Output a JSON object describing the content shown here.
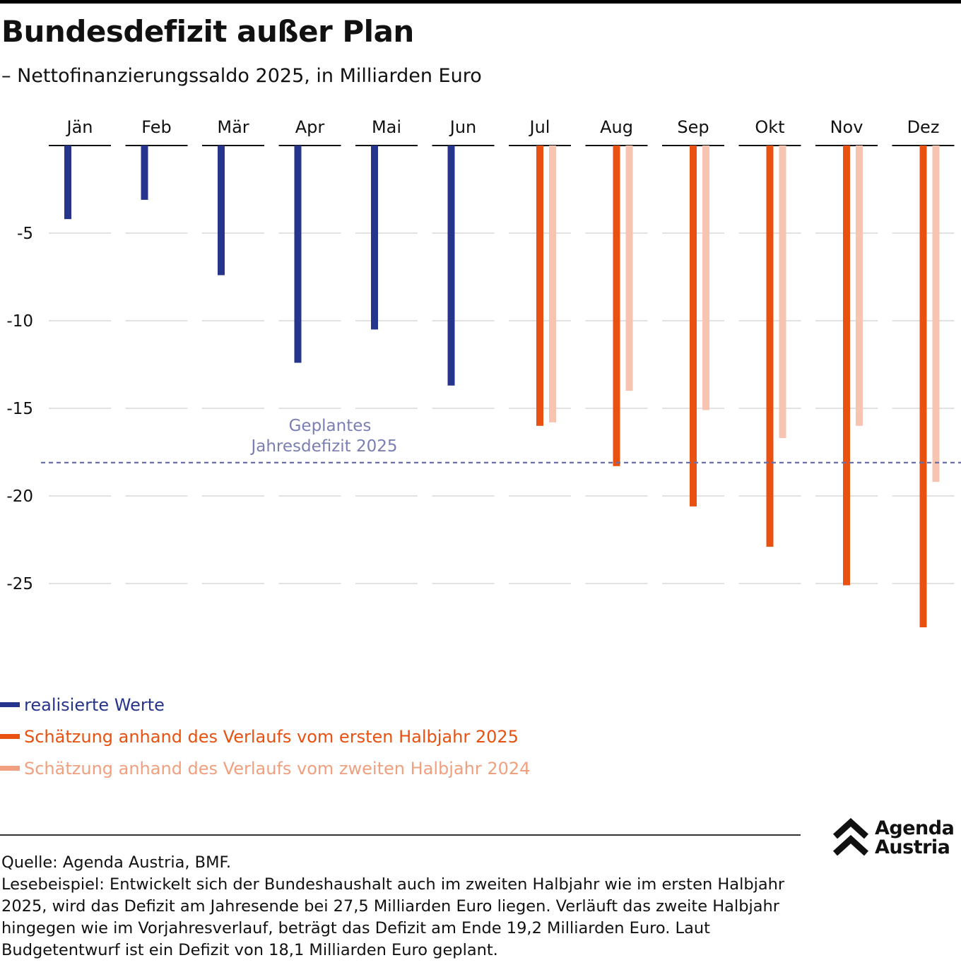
{
  "header": {
    "title": "Bundesdefizit außer Plan",
    "subtitle": "– Nettofinanzierungssaldo 2025, in Milliarden Euro"
  },
  "colors": {
    "realized": "#27348b",
    "estimate_h1_2025": "#e8510f",
    "estimate_h2_2024": "#f6c4b0",
    "estimate_h2_2024_legend": "#f0a07e",
    "reference_line": "#6b6fa8",
    "gridline": "#d9d9d9"
  },
  "chart_data": {
    "type": "bar",
    "title": "Bundesdefizit außer Plan",
    "subtitle": "Nettofinanzierungssaldo 2025, in Milliarden Euro",
    "xlabel": "",
    "ylabel": "Milliarden Euro",
    "ylim": [
      -30,
      0
    ],
    "yticks": [
      -5,
      -10,
      -15,
      -20,
      -25
    ],
    "ytick_labels": [
      "-5",
      "-10",
      "-15",
      "-20",
      "-25"
    ],
    "grid": true,
    "x_axis_position": "top",
    "categories": [
      "Jän",
      "Feb",
      "Mär",
      "Apr",
      "Mai",
      "Jun",
      "Jul",
      "Aug",
      "Sep",
      "Okt",
      "Nov",
      "Dez"
    ],
    "series": [
      {
        "name": "realisierte Werte",
        "key": "realized",
        "values": [
          -4.2,
          -3.1,
          -7.4,
          -12.4,
          -10.5,
          -13.7,
          null,
          null,
          null,
          null,
          null,
          null
        ]
      },
      {
        "name": "Schätzung anhand des Verlaufs vom ersten Halbjahr 2025",
        "key": "estimate_h1_2025",
        "values": [
          null,
          null,
          null,
          null,
          null,
          null,
          -16.0,
          -18.3,
          -20.6,
          -22.9,
          -25.1,
          -27.5
        ]
      },
      {
        "name": "Schätzung anhand des Verlaufs vom zweiten Halbjahr 2024",
        "key": "estimate_h2_2024",
        "values": [
          null,
          null,
          null,
          null,
          null,
          null,
          -15.8,
          -14.0,
          -15.1,
          -16.7,
          -16.0,
          -19.2
        ]
      }
    ],
    "reference_line": {
      "value": -18.1,
      "label_line1": "Geplantes",
      "label_line2": "Jahresdefizit 2025",
      "style": "dashed"
    },
    "legend_position": "bottom-left"
  },
  "legend": [
    {
      "label": "realisierte Werte",
      "color_key": "realized"
    },
    {
      "label": "Schätzung anhand des Verlaufs vom ersten Halbjahr 2025",
      "color_key": "estimate_h1_2025"
    },
    {
      "label": "Schätzung anhand des Verlaufs vom zweiten Halbjahr 2024",
      "color_key": "estimate_h2_2024_legend"
    }
  ],
  "logo": {
    "line1": "Agenda",
    "line2": "Austria"
  },
  "footer": {
    "source": "Quelle: Agenda Austria, BMF.",
    "reading_example": "Lesebeispiel: Entwickelt sich der Bundeshaushalt auch im zweiten Halbjahr wie im ersten Halbjahr 2025, wird das Defizit am Jahresende bei 27,5 Milliarden Euro liegen. Verläuft das zweite Halbjahr hingegen wie im Vorjahresverlauf, beträgt das Defizit am Ende 19,2 Milliarden Euro. Laut Budgetentwurf ist ein Defizit von 18,1 Milliarden Euro geplant."
  }
}
